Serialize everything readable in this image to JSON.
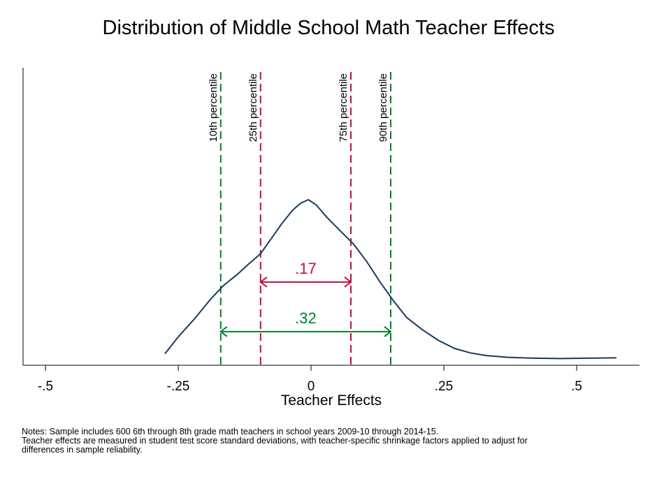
{
  "chart_data": {
    "type": "line",
    "title": "Distribution of Middle School Math Teacher Effects",
    "xlabel": "Teacher Effects",
    "ylabel": "",
    "xlim": [
      -0.5,
      0.6
    ],
    "ylim": [
      0,
      1
    ],
    "x_ticks": [
      {
        "value": -0.5,
        "label": "-.5"
      },
      {
        "value": -0.25,
        "label": "-.25"
      },
      {
        "value": 0,
        "label": "0"
      },
      {
        "value": 0.25,
        "label": ".25"
      },
      {
        "value": 0.5,
        "label": ".5"
      }
    ],
    "grid": false,
    "series": [
      {
        "name": "",
        "x": [
          -0.275,
          -0.25,
          -0.22,
          -0.19,
          -0.165,
          -0.14,
          -0.12,
          -0.095,
          -0.075,
          -0.055,
          -0.035,
          -0.02,
          -0.005,
          0.01,
          0.03,
          0.055,
          0.08,
          0.105,
          0.13,
          0.155,
          0.18,
          0.21,
          0.24,
          0.27,
          0.3,
          0.33,
          0.37,
          0.42,
          0.47,
          0.52,
          0.575
        ],
        "y": [
          0.065,
          0.16,
          0.26,
          0.37,
          0.45,
          0.51,
          0.565,
          0.63,
          0.715,
          0.8,
          0.875,
          0.915,
          0.935,
          0.905,
          0.835,
          0.76,
          0.685,
          0.585,
          0.47,
          0.365,
          0.27,
          0.2,
          0.14,
          0.095,
          0.07,
          0.055,
          0.045,
          0.04,
          0.038,
          0.04,
          0.042
        ]
      }
    ],
    "percentiles": [
      {
        "label": "10th percentile",
        "value": -0.17,
        "color": "#00802b"
      },
      {
        "label": "25th percentile",
        "value": -0.095,
        "color": "#c0103a"
      },
      {
        "label": "75th percentile",
        "value": 0.075,
        "color": "#c0103a"
      },
      {
        "label": "90th percentile",
        "value": 0.15,
        "color": "#00802b"
      }
    ],
    "annotations": [
      {
        "text": ".17",
        "from": -0.095,
        "to": 0.075,
        "level": 0.47,
        "color": "#c0103a"
      },
      {
        "text": ".32",
        "from": -0.17,
        "to": 0.15,
        "level": 0.19,
        "color": "#00802b"
      }
    ],
    "line_color": "#1b3a5c"
  },
  "notes": [
    "Notes: Sample includes 600 6th through 8th grade math teachers in school years 2009-10 through 2014-15.",
    "Teacher effects are measured in student test score standard deviations, with teacher-specific shrinkage factors applied to adjust for",
    "differences in sample reliability."
  ]
}
